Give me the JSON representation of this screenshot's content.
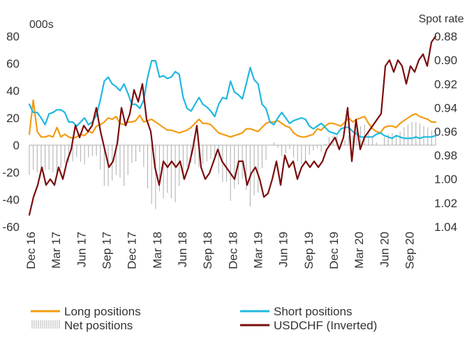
{
  "chart_data": {
    "type": "line",
    "left_axis_label": "000s",
    "right_axis_label": "Spot rate",
    "left_ticks": [
      "80",
      "60",
      "40",
      "20",
      "0",
      "-20",
      "-40",
      "-60"
    ],
    "right_ticks": [
      "0.88",
      "0.90",
      "0.92",
      "0.94",
      "0.96",
      "0.98",
      "1.00",
      "1.02",
      "1.04"
    ],
    "x_ticks": [
      "Dec 16",
      "Mar 17",
      "Jun 17",
      "Sep 17",
      "Dec 17",
      "Mar 18",
      "Jun 18",
      "Sep 18",
      "Dec 18",
      "Mar 19",
      "Jun 19",
      "Sep 19",
      "Dec 19",
      "Mar 20",
      "Jun 20",
      "Sep 20"
    ],
    "ylim_left": [
      -60,
      80
    ],
    "ylim_right_inverted": [
      0.88,
      1.04
    ],
    "grid": false,
    "legend_position": "bottom",
    "colors": {
      "long": "#f39c12",
      "short": "#1fb8e0",
      "net": "#b3b3b3",
      "usdchf": "#7b0c0c"
    },
    "series": [
      {
        "name": "Long positions",
        "axis": "left",
        "values": [
          8,
          33,
          10,
          6,
          6,
          7,
          6,
          13,
          6,
          8,
          6,
          5,
          6,
          8,
          7,
          10,
          9,
          14,
          15,
          17,
          20,
          19,
          21,
          16,
          15,
          17,
          17,
          18,
          22,
          17,
          18,
          19,
          17,
          15,
          13,
          11,
          11,
          10,
          9,
          10,
          11,
          13,
          16,
          19,
          16,
          16,
          15,
          12,
          9,
          8,
          7,
          6,
          7,
          8,
          9,
          12,
          12,
          11,
          10,
          13,
          16,
          17,
          17,
          18,
          16,
          14,
          13,
          9,
          7,
          6,
          6,
          7,
          8,
          12,
          11,
          14,
          16,
          16,
          15,
          14,
          17,
          20,
          17,
          19,
          20,
          21,
          16,
          12,
          10,
          9,
          13,
          14,
          14,
          13,
          16,
          18,
          20,
          22,
          23,
          21,
          20,
          19,
          17,
          17
        ]
      },
      {
        "name": "Short positions",
        "axis": "left",
        "values": [
          30,
          24,
          24,
          20,
          15,
          23,
          24,
          26,
          26,
          24,
          17,
          17,
          14,
          17,
          20,
          15,
          17,
          22,
          33,
          47,
          50,
          45,
          43,
          40,
          45,
          38,
          30,
          30,
          27,
          33,
          50,
          62,
          62,
          50,
          51,
          49,
          50,
          54,
          52,
          35,
          27,
          25,
          30,
          35,
          30,
          28,
          25,
          21,
          30,
          35,
          34,
          47,
          39,
          37,
          34,
          45,
          57,
          48,
          45,
          30,
          27,
          17,
          15,
          20,
          24,
          20,
          16,
          18,
          19,
          20,
          19,
          14,
          12,
          14,
          16,
          13,
          10,
          9,
          8,
          12,
          13,
          13,
          10,
          8,
          6,
          6,
          6,
          6,
          8,
          9,
          7,
          6,
          5,
          7,
          6,
          5,
          5,
          5,
          6,
          5,
          6,
          6,
          6,
          7
        ]
      },
      {
        "name": "Net positions",
        "axis": "left",
        "values": [
          -22,
          -18,
          -20,
          -17,
          -18,
          -18,
          -20,
          -20,
          -17,
          -13,
          -13,
          -12,
          -9,
          -12,
          -14,
          -9,
          -8,
          -8,
          -18,
          -30,
          -30,
          -26,
          -22,
          -24,
          -30,
          -22,
          -13,
          -12,
          -5,
          -16,
          -32,
          -43,
          -47,
          -34,
          -39,
          -35,
          -39,
          -42,
          -30,
          -25,
          -16,
          -13,
          -14,
          -16,
          -14,
          -12,
          -10,
          -9,
          -21,
          -27,
          -27,
          -41,
          -32,
          -29,
          -25,
          -33,
          -45,
          -37,
          -35,
          -17,
          -11,
          0,
          2,
          -2,
          -8,
          -6,
          -3,
          -9,
          -12,
          -14,
          -13,
          -7,
          -4,
          -2,
          -5,
          1,
          6,
          7,
          7,
          2,
          4,
          7,
          7,
          11,
          14,
          15,
          10,
          6,
          2,
          0,
          6,
          8,
          9,
          6,
          10,
          13,
          15,
          17,
          17,
          16,
          14,
          13,
          11,
          10
        ]
      },
      {
        "name": "USDCHF (Inverted)",
        "axis": "right",
        "values": [
          1.03,
          1.015,
          1.005,
          0.99,
          1.005,
          1.0,
          1.005,
          0.99,
          1.0,
          0.985,
          0.975,
          0.955,
          0.965,
          0.955,
          0.96,
          0.955,
          0.94,
          0.96,
          0.975,
          0.99,
          0.985,
          0.97,
          0.94,
          0.955,
          0.945,
          0.925,
          0.935,
          0.92,
          0.95,
          0.96,
          0.99,
          1.005,
          0.985,
          0.99,
          0.985,
          0.99,
          0.985,
          1.0,
          0.99,
          0.975,
          0.955,
          0.99,
          1.0,
          0.995,
          0.985,
          0.975,
          0.985,
          0.99,
          0.995,
          1.0,
          0.985,
          0.985,
          1.005,
          0.995,
          0.99,
          1.0,
          1.015,
          1.012,
          1.0,
          0.985,
          1.005,
          0.98,
          0.99,
          0.985,
          1.0,
          0.99,
          0.985,
          0.99,
          0.985,
          0.99,
          0.985,
          0.975,
          0.97,
          0.965,
          0.975,
          0.965,
          0.94,
          0.985,
          0.95,
          0.975,
          0.965,
          0.96,
          0.955,
          0.95,
          0.945,
          0.905,
          0.9,
          0.91,
          0.9,
          0.905,
          0.92,
          0.905,
          0.91,
          0.9,
          0.895,
          0.905,
          0.885,
          0.88
        ]
      }
    ]
  },
  "legend": {
    "long": "Long positions",
    "short": "Short positions",
    "net": "Net positions",
    "usdchf": "USDCHF (Inverted)"
  }
}
